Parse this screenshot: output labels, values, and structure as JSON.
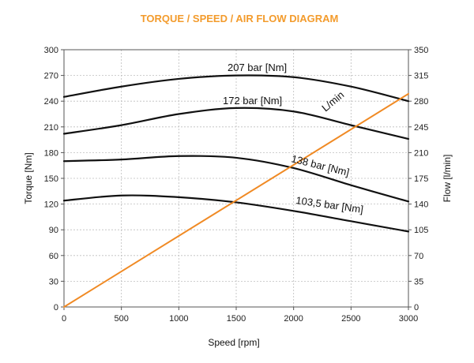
{
  "chart_data": {
    "type": "line",
    "title": "TORQUE / SPEED / AIR FLOW DIAGRAM",
    "title_color": "#f39b2c",
    "xlabel": "Speed [rpm]",
    "ylabel": "Torque [Nm]",
    "y2label": "Flow [l/min]",
    "xlim": [
      0,
      3000
    ],
    "ylim": [
      0,
      300
    ],
    "y2lim": [
      0,
      350
    ],
    "x_ticks": [
      "0",
      "500",
      "1000",
      "1500",
      "2000",
      "2500",
      "3000"
    ],
    "y_ticks": [
      "0",
      "30",
      "60",
      "90",
      "120",
      "150",
      "180",
      "210",
      "240",
      "270",
      "300"
    ],
    "y2_ticks": [
      "0",
      "35",
      "70",
      "105",
      "140",
      "175",
      "210",
      "245",
      "280",
      "315",
      "350"
    ],
    "grid": true,
    "series": [
      {
        "name": "207 bar [Nm]",
        "axis": "left",
        "color": "#111111",
        "x": [
          0,
          500,
          1000,
          1500,
          2000,
          2500,
          3000
        ],
        "values": [
          245,
          257,
          266,
          270,
          268,
          257,
          240
        ]
      },
      {
        "name": "172 bar [Nm]",
        "axis": "left",
        "color": "#111111",
        "x": [
          0,
          500,
          1000,
          1500,
          2000,
          2500,
          3000
        ],
        "values": [
          202,
          212,
          225,
          232,
          228,
          212,
          196
        ]
      },
      {
        "name": "138 bar [Nm]",
        "axis": "left",
        "color": "#111111",
        "x": [
          0,
          500,
          1000,
          1500,
          2000,
          2500,
          3000
        ],
        "values": [
          170,
          172,
          176,
          174,
          162,
          142,
          123
        ]
      },
      {
        "name": "103,5 bar [Nm]",
        "axis": "left",
        "color": "#111111",
        "x": [
          0,
          500,
          1000,
          1500,
          2000,
          2500,
          3000
        ],
        "values": [
          124,
          130,
          128,
          122,
          112,
          100,
          88
        ]
      },
      {
        "name": "L/min",
        "axis": "right",
        "color": "#f08a24",
        "x": [
          0,
          3000
        ],
        "values": [
          0,
          290
        ]
      }
    ]
  }
}
